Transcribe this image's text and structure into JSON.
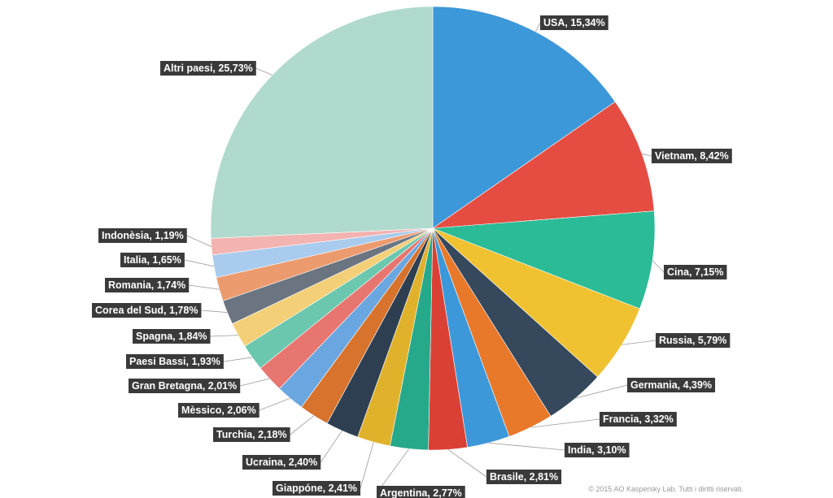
{
  "chart_data": {
    "type": "pie",
    "start": "top",
    "direction": "clockwise",
    "slices": [
      {
        "label": "USA, 15,34%",
        "value": 15.34,
        "color": "#3d98d9"
      },
      {
        "label": "Vietnam, 8,42%",
        "value": 8.42,
        "color": "#e54d42"
      },
      {
        "label": "Cina, 7,15%",
        "value": 7.15,
        "color": "#2bbb96"
      },
      {
        "label": "Russia, 5,79%",
        "value": 5.79,
        "color": "#f0c232"
      },
      {
        "label": "Germania, 4,39%",
        "value": 4.39,
        "color": "#35485c"
      },
      {
        "label": "Francia, 3,32%",
        "value": 3.32,
        "color": "#e8782a"
      },
      {
        "label": "India, 3,10%",
        "value": 3.1,
        "color": "#3d98d9"
      },
      {
        "label": "Brasile, 2,81%",
        "value": 2.81,
        "color": "#db4035"
      },
      {
        "label": "Argentina, 2,77%",
        "value": 2.77,
        "color": "#26a98a"
      },
      {
        "label": "Giappóne, 2,41%",
        "value": 2.41,
        "color": "#e0b22b"
      },
      {
        "label": "Ucraina, 2,40%",
        "value": 2.4,
        "color": "#2e3f52"
      },
      {
        "label": "Turchia, 2,18%",
        "value": 2.18,
        "color": "#d7732c"
      },
      {
        "label": "Mèssico, 2,06%",
        "value": 2.06,
        "color": "#6aa6e0"
      },
      {
        "label": "Gran Bretagna, 2,01%",
        "value": 2.01,
        "color": "#e87670"
      },
      {
        "label": "Paesi Bassi, 1,93%",
        "value": 1.93,
        "color": "#6bc7ad"
      },
      {
        "label": "Spagna, 1,84%",
        "value": 1.84,
        "color": "#f3d078"
      },
      {
        "label": "Corea del Sud, 1,78%",
        "value": 1.78,
        "color": "#6b7581"
      },
      {
        "label": "Romania, 1,74%",
        "value": 1.74,
        "color": "#ec9b6e"
      },
      {
        "label": "Italia, 1,65%",
        "value": 1.65,
        "color": "#a9cbed"
      },
      {
        "label": "Indonèsia, 1,19%",
        "value": 1.19,
        "color": "#f3b3b0"
      },
      {
        "label": "Altri paesi, 25,73%",
        "value": 25.73,
        "color": "#b1dace"
      }
    ]
  },
  "footer": {
    "copyright": "© 2015 AO Kaspersky Lab. Tutti i diritti riservati."
  }
}
